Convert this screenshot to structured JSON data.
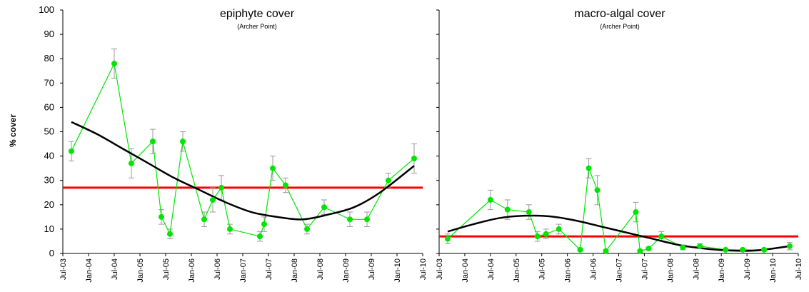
{
  "chart_data": [
    {
      "type": "line",
      "title": "epiphyte cover",
      "subtitle": "(Archer Point)",
      "ylabel": "% cover",
      "xlabel": "",
      "ylim": [
        0,
        100
      ],
      "yticks": [
        0,
        10,
        20,
        30,
        40,
        50,
        60,
        70,
        80,
        90,
        100
      ],
      "xticks": [
        "Jul-03",
        "Jan-04",
        "Jul-04",
        "Jan-05",
        "Jul-05",
        "Jan-06",
        "Jul-06",
        "Jan-07",
        "Jul-07",
        "Jan-08",
        "Jul-08",
        "Jan-09",
        "Jul-09",
        "Jan-10",
        "Jul-10"
      ],
      "reference_line": 27,
      "reference_color": "#ff0000",
      "series_color": "#00e600",
      "trend_color": "#000000",
      "points": [
        {
          "x": "2003-09",
          "y": 42,
          "err": 4
        },
        {
          "x": "2004-07",
          "y": 78,
          "err": 6
        },
        {
          "x": "2004-11",
          "y": 37,
          "err": 6
        },
        {
          "x": "2005-04",
          "y": 46,
          "err": 5
        },
        {
          "x": "2005-06",
          "y": 15,
          "err": 3
        },
        {
          "x": "2005-08",
          "y": 8,
          "err": 2
        },
        {
          "x": "2005-11",
          "y": 46,
          "err": 4
        },
        {
          "x": "2006-04",
          "y": 14,
          "err": 3
        },
        {
          "x": "2006-06",
          "y": 22,
          "err": 5
        },
        {
          "x": "2006-08",
          "y": 27,
          "err": 5
        },
        {
          "x": "2006-10",
          "y": 10,
          "err": 2
        },
        {
          "x": "2007-05",
          "y": 7,
          "err": 2
        },
        {
          "x": "2007-06",
          "y": 12,
          "err": 3
        },
        {
          "x": "2007-08",
          "y": 35,
          "err": 5
        },
        {
          "x": "2007-11",
          "y": 28,
          "err": 3
        },
        {
          "x": "2008-04",
          "y": 10,
          "err": 2
        },
        {
          "x": "2008-08",
          "y": 19,
          "err": 3
        },
        {
          "x": "2009-02",
          "y": 14,
          "err": 3
        },
        {
          "x": "2009-06",
          "y": 14,
          "err": 3
        },
        {
          "x": "2009-11",
          "y": 30,
          "err": 3
        },
        {
          "x": "2010-05",
          "y": 39,
          "err": 6
        }
      ],
      "trend": [
        {
          "x": "2003-09",
          "y": 54
        },
        {
          "x": "2004-03",
          "y": 49
        },
        {
          "x": "2004-09",
          "y": 43
        },
        {
          "x": "2005-03",
          "y": 37
        },
        {
          "x": "2005-09",
          "y": 31
        },
        {
          "x": "2006-03",
          "y": 26
        },
        {
          "x": "2006-09",
          "y": 21
        },
        {
          "x": "2007-03",
          "y": 17
        },
        {
          "x": "2007-09",
          "y": 15
        },
        {
          "x": "2008-03",
          "y": 14
        },
        {
          "x": "2008-09",
          "y": 16
        },
        {
          "x": "2009-03",
          "y": 19
        },
        {
          "x": "2009-09",
          "y": 25
        },
        {
          "x": "2010-05",
          "y": 36
        }
      ]
    },
    {
      "type": "line",
      "title": "macro-algal cover",
      "subtitle": "(Archer Point)",
      "ylabel": "",
      "xlabel": "",
      "ylim": [
        0,
        100
      ],
      "yticks": [
        0,
        10,
        20,
        30,
        40,
        50,
        60,
        70,
        80,
        90,
        100
      ],
      "xticks": [
        "Jul-03",
        "Jan-04",
        "Jul-04",
        "Jan-05",
        "Jul-05",
        "Jan-06",
        "Jul-06",
        "Jan-07",
        "Jul-07",
        "Jan-08",
        "Jul-08",
        "Jan-09",
        "Jul-09",
        "Jan-10",
        "Jul-10"
      ],
      "reference_line": 7,
      "reference_color": "#ff0000",
      "series_color": "#00e600",
      "trend_color": "#000000",
      "points": [
        {
          "x": "2003-09",
          "y": 6,
          "err": 2
        },
        {
          "x": "2004-07",
          "y": 22,
          "err": 4
        },
        {
          "x": "2004-11",
          "y": 18,
          "err": 4
        },
        {
          "x": "2005-04",
          "y": 17,
          "err": 3
        },
        {
          "x": "2005-06",
          "y": 7,
          "err": 2
        },
        {
          "x": "2005-08",
          "y": 8,
          "err": 2
        },
        {
          "x": "2005-11",
          "y": 10,
          "err": 2
        },
        {
          "x": "2006-04",
          "y": 1.5,
          "err": 0.5
        },
        {
          "x": "2006-06",
          "y": 35,
          "err": 4
        },
        {
          "x": "2006-08",
          "y": 26,
          "err": 6
        },
        {
          "x": "2006-10",
          "y": 1,
          "err": 0.5
        },
        {
          "x": "2007-05",
          "y": 17,
          "err": 4
        },
        {
          "x": "2007-06",
          "y": 1,
          "err": 0.5
        },
        {
          "x": "2007-08",
          "y": 2,
          "err": 0.5
        },
        {
          "x": "2007-11",
          "y": 7,
          "err": 2
        },
        {
          "x": "2008-04",
          "y": 2.5,
          "err": 1
        },
        {
          "x": "2008-08",
          "y": 3,
          "err": 1
        },
        {
          "x": "2009-02",
          "y": 1.5,
          "err": 0.5
        },
        {
          "x": "2009-06",
          "y": 1.5,
          "err": 0.5
        },
        {
          "x": "2009-11",
          "y": 1.5,
          "err": 0.5
        },
        {
          "x": "2010-05",
          "y": 3,
          "err": 1.5
        }
      ],
      "trend": [
        {
          "x": "2003-09",
          "y": 9
        },
        {
          "x": "2004-03",
          "y": 12
        },
        {
          "x": "2004-09",
          "y": 14.5
        },
        {
          "x": "2005-03",
          "y": 15.5
        },
        {
          "x": "2005-09",
          "y": 15.2
        },
        {
          "x": "2006-03",
          "y": 13.5
        },
        {
          "x": "2006-09",
          "y": 11
        },
        {
          "x": "2007-03",
          "y": 8.5
        },
        {
          "x": "2007-09",
          "y": 6
        },
        {
          "x": "2008-03",
          "y": 3.5
        },
        {
          "x": "2008-09",
          "y": 2
        },
        {
          "x": "2009-03",
          "y": 1.2
        },
        {
          "x": "2009-09",
          "y": 1.2
        },
        {
          "x": "2010-05",
          "y": 3
        }
      ]
    }
  ]
}
